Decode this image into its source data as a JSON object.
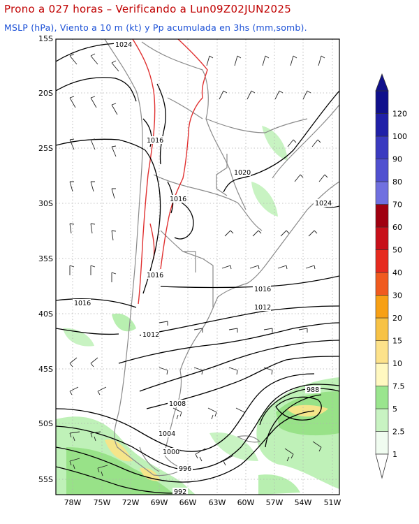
{
  "header": {
    "title": "Prono a 027 horas – Verificando a Lun09Z02JUN2025",
    "subtitle": "MSLP (hPa), Viento a 10 m (kt) y Pp acumulada en 3hs (mm,somb)."
  },
  "map": {
    "lat_labels": [
      "15S",
      "20S",
      "25S",
      "30S",
      "35S",
      "40S",
      "45S",
      "50S",
      "55S"
    ],
    "lon_labels": [
      "78W",
      "75W",
      "72W",
      "69W",
      "66W",
      "63W",
      "60W",
      "57W",
      "54W",
      "51W"
    ],
    "isobar_labels": [
      "1024",
      "1016",
      "1020",
      "1016",
      "1024",
      "1016",
      "1016",
      "1016",
      "1012",
      "1012",
      "988",
      "1008",
      "1004",
      "1000",
      "996",
      "992"
    ],
    "colors": {
      "isobar": "#000000",
      "orography": "#e03030",
      "borders": "#888888",
      "precip_light": "#b8efb0",
      "precip_med": "#8fdf7c",
      "precip_heavy": "#f5e58a"
    }
  },
  "colorbar": {
    "levels": [
      "1",
      "2.5",
      "5",
      "7.5",
      "10",
      "15",
      "20",
      "30",
      "40",
      "50",
      "60",
      "70",
      "80",
      "90",
      "100",
      "120"
    ],
    "colors": [
      "#f0fcf0",
      "#c8f3c2",
      "#9ae58e",
      "#fff8c0",
      "#fde28a",
      "#f7c245",
      "#f7a014",
      "#f05a1e",
      "#e62a1e",
      "#c8101a",
      "#a00010",
      "#7070e0",
      "#5050d0",
      "#3a3ac0",
      "#2020a8",
      "#10108c"
    ]
  }
}
